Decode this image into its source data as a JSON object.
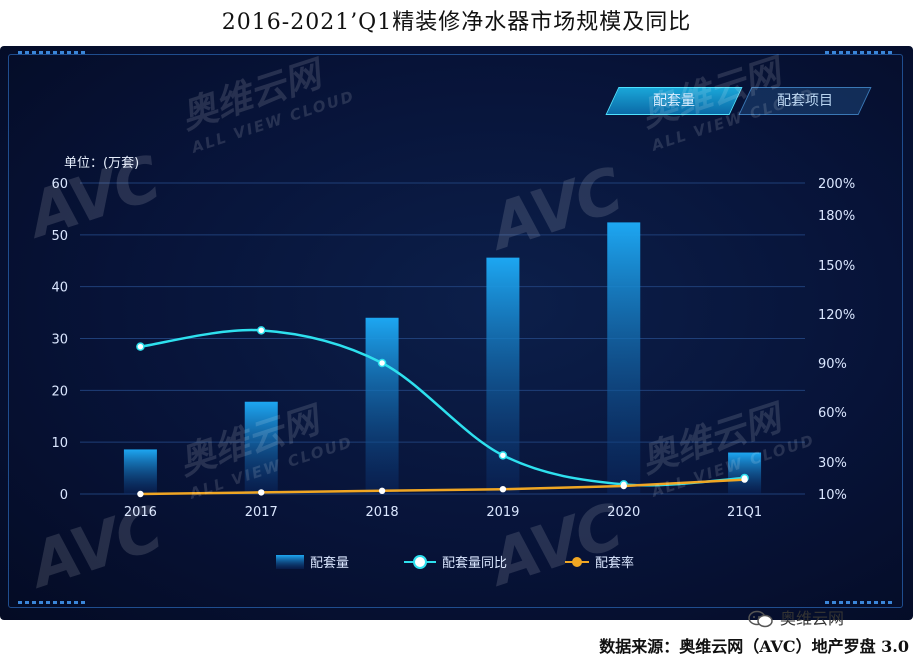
{
  "title": "2016-2021’Q1精装修净水器市场规模及同比",
  "tabs": {
    "active": "配套量",
    "inactive": "配套项目"
  },
  "unit_label": "单位：(万套)",
  "footer": {
    "brand": "奥维云网",
    "source": "数据来源：奥维云网（AVC）地产罗盘 3.0"
  },
  "watermark": {
    "logo": "AVC",
    "cn": "奥维云网",
    "en": "ALL VIEW CLOUD"
  },
  "colors": {
    "bar_top": "#1da7f2",
    "bar_bottom": "#0a2a66",
    "yoy_line": "#2ee0ee",
    "rate_line": "#f0a623",
    "grid": "#1f3f78",
    "axis_text": "#dbe7ff"
  },
  "chart_data": {
    "type": "bar",
    "categories": [
      "2016",
      "2017",
      "2018",
      "2019",
      "2020",
      "21Q1"
    ],
    "series": [
      {
        "name": "配套量",
        "type": "bar",
        "axis": "left",
        "values": [
          8.6,
          17.8,
          34,
          45.6,
          52.4,
          8
        ]
      },
      {
        "name": "配套量同比",
        "type": "line",
        "axis": "right",
        "smooth": true,
        "values": [
          100,
          110,
          90,
          34,
          16,
          20
        ]
      },
      {
        "name": "配套率",
        "type": "line",
        "axis": "right",
        "values": [
          10,
          11,
          12,
          13,
          15,
          19
        ]
      }
    ],
    "y_left": {
      "ticks": [
        0,
        10,
        20,
        30,
        40,
        50,
        60
      ],
      "ylim": [
        0,
        60
      ]
    },
    "y_right": {
      "ticks": [
        "10%",
        "30%",
        "60%",
        "90%",
        "120%",
        "150%",
        "180%",
        "200%"
      ],
      "tick_values": [
        10,
        30,
        60,
        90,
        120,
        150,
        180,
        200
      ]
    },
    "grid": true,
    "legend_position": "bottom"
  }
}
